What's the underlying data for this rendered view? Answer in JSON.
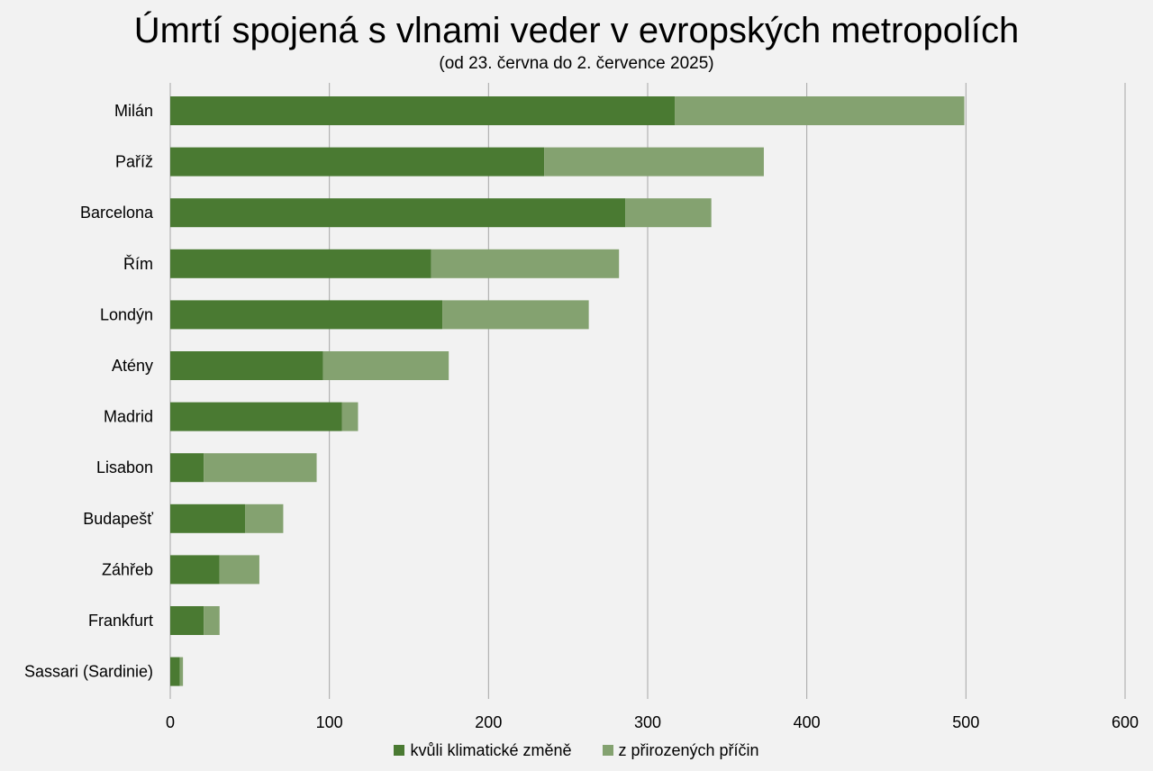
{
  "title": "Úmrtí spojená s vlnami veder v evropských metropolích",
  "subtitle": "(od 23. června do 2. července 2025)",
  "colors": {
    "climate": "#4a7a32",
    "natural": "#84a270",
    "grid": "#a6a6a6",
    "background": "#f2f2f2"
  },
  "legend": [
    {
      "label": "kvůli klimatické změně",
      "color": "#4a7a32"
    },
    {
      "label": "z přirozených příčin",
      "color": "#84a270"
    }
  ],
  "chart_data": {
    "type": "bar",
    "orientation": "horizontal",
    "stacked": true,
    "categories": [
      "Milán",
      "Paříž",
      "Barcelona",
      "Řím",
      "Londýn",
      "Atény",
      "Madrid",
      "Lisabon",
      "Budapešť",
      "Záhřeb",
      "Frankfurt",
      "Sassari (Sardinie)"
    ],
    "series": [
      {
        "name": "kvůli klimatické změně",
        "values": [
          317,
          235,
          286,
          164,
          171,
          96,
          108,
          21,
          47,
          31,
          21,
          6
        ]
      },
      {
        "name": "z přirozených příčin",
        "values": [
          182,
          138,
          54,
          118,
          92,
          79,
          10,
          71,
          24,
          25,
          10,
          2
        ]
      }
    ],
    "xlim": [
      0,
      600
    ],
    "xticks": [
      0,
      100,
      200,
      300,
      400,
      500,
      600
    ],
    "grid": true,
    "legend_position": "bottom"
  }
}
